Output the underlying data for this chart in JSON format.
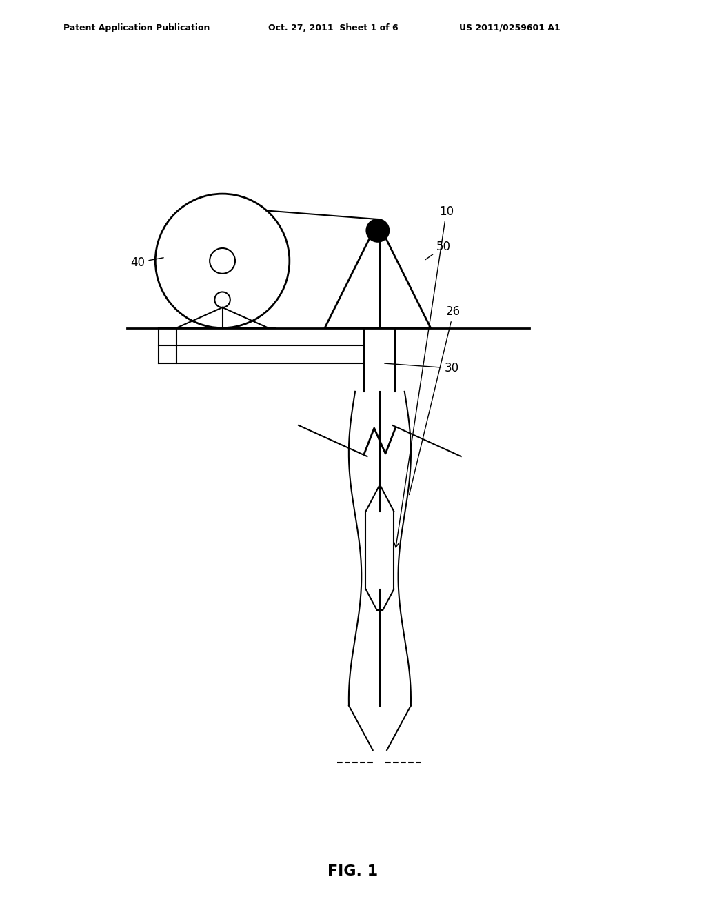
{
  "title_left": "Patent Application Publication",
  "title_mid": "Oct. 27, 2011  Sheet 1 of 6",
  "title_right": "US 2011/0259601 A1",
  "fig_label": "FIG. 1",
  "bg_color": "#ffffff",
  "line_color": "#000000",
  "lw": 1.5
}
